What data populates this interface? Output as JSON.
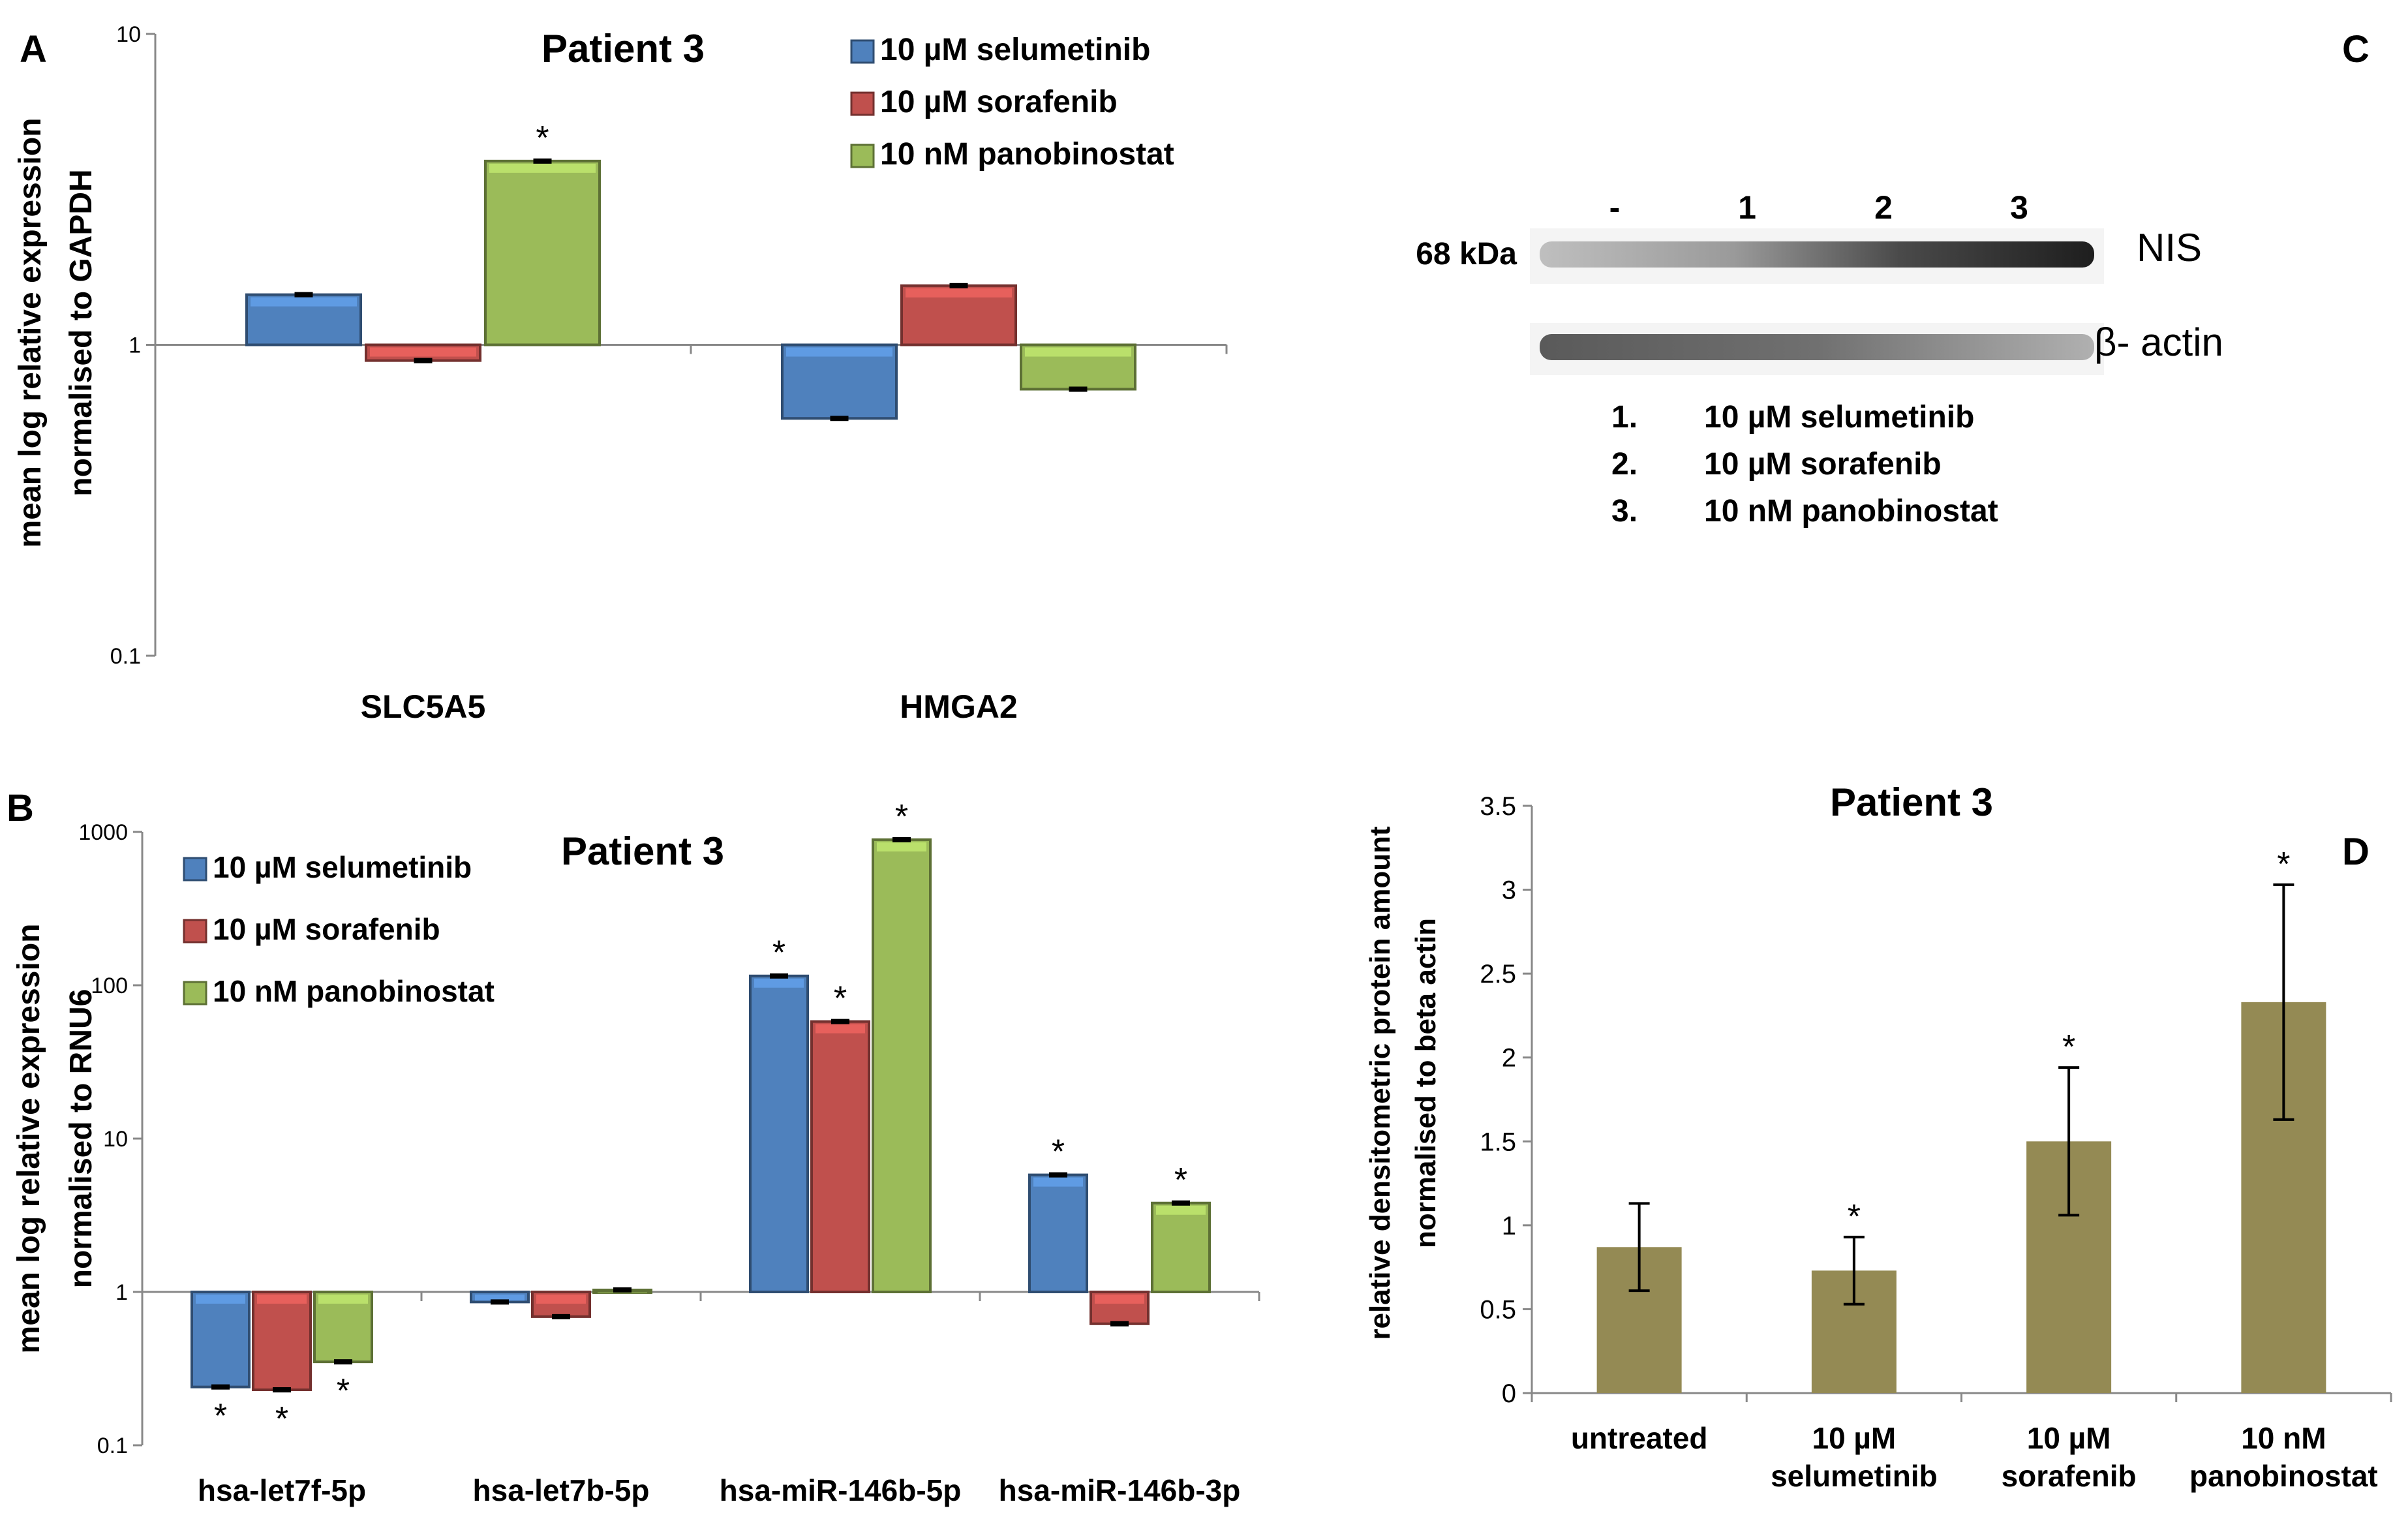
{
  "chart_data": [
    {
      "panel": "A",
      "type": "bar",
      "title": "Patient 3",
      "ylabel": [
        "mean log relative expression",
        "normalised to GAPDH"
      ],
      "scale": "log",
      "ylim": [
        0.1,
        10
      ],
      "yticks": [
        "10",
        "1",
        "0.1"
      ],
      "categories": [
        "SLC5A5",
        "HMGA2"
      ],
      "legend_position": "top",
      "series": [
        {
          "name": "10 µM selumetinib",
          "color": "#4f81bd",
          "values": [
            1.45,
            0.58
          ],
          "sig": [
            false,
            false
          ]
        },
        {
          "name": "10 µM sorafenib",
          "color": "#c0504d",
          "values": [
            0.89,
            1.55
          ],
          "sig": [
            false,
            false
          ]
        },
        {
          "name": "10 nM panobinostat",
          "color": "#9bbb59",
          "values": [
            3.9,
            0.72
          ],
          "sig": [
            true,
            false
          ]
        }
      ],
      "sig_symbol": "*"
    },
    {
      "panel": "B",
      "type": "bar",
      "title": "Patient 3",
      "ylabel": [
        "mean log relative expression",
        "normalised to RNU6"
      ],
      "scale": "log",
      "ylim": [
        0.1,
        1000
      ],
      "yticks": [
        "1000",
        "100",
        "10",
        "1",
        "0.1"
      ],
      "categories": [
        "hsa-let7f-5p",
        "hsa-let7b-5p",
        "hsa-miR-146b-5p",
        "hsa-miR-146b-3p"
      ],
      "legend_position": "top-left",
      "series": [
        {
          "name": "10 µM selumetinib",
          "color": "#4f81bd",
          "values": [
            0.24,
            0.86,
            115,
            5.8
          ],
          "sig": [
            true,
            false,
            true,
            true
          ]
        },
        {
          "name": "10 µM sorafenib",
          "color": "#c0504d",
          "values": [
            0.23,
            0.69,
            58,
            0.62
          ],
          "sig": [
            true,
            false,
            true,
            false
          ]
        },
        {
          "name": "10 nM panobinostat",
          "color": "#9bbb59",
          "values": [
            0.35,
            1.03,
            890,
            3.8
          ],
          "sig": [
            true,
            false,
            true,
            true
          ]
        }
      ],
      "sig_symbol": "*"
    },
    {
      "panel": "D",
      "type": "bar",
      "title": "Patient 3",
      "ylabel": [
        "relative densitometric protein amount",
        "normalised to beta actin"
      ],
      "ylim": [
        0,
        3.5
      ],
      "yticks": [
        "3.5",
        "3",
        "2.5",
        "2",
        "1.5",
        "1",
        "0.5",
        "0"
      ],
      "categories": [
        [
          "untreated"
        ],
        [
          "10 µM",
          "selumetinib"
        ],
        [
          "10 µM",
          "sorafenib"
        ],
        [
          "10 nM",
          "panobinostat"
        ]
      ],
      "color": "#948a54",
      "values": [
        0.87,
        0.73,
        1.5,
        2.33
      ],
      "error": [
        0.26,
        0.2,
        0.44,
        0.7
      ],
      "sig": [
        false,
        true,
        true,
        true
      ],
      "sig_symbol": "*"
    }
  ],
  "panel_labels": {
    "a": "A",
    "b": "B",
    "c": "C",
    "d": "D"
  },
  "blot": {
    "lanes": [
      "-",
      "1",
      "2",
      "3"
    ],
    "marker": "68 kDa",
    "band_top": "NIS",
    "band_bottom": "β- actin",
    "legend": [
      {
        "num": "1.",
        "text": "10 µM selumetinib"
      },
      {
        "num": "2.",
        "text": "10 µM sorafenib"
      },
      {
        "num": "3.",
        "text": "10 nM panobinostat"
      }
    ]
  }
}
